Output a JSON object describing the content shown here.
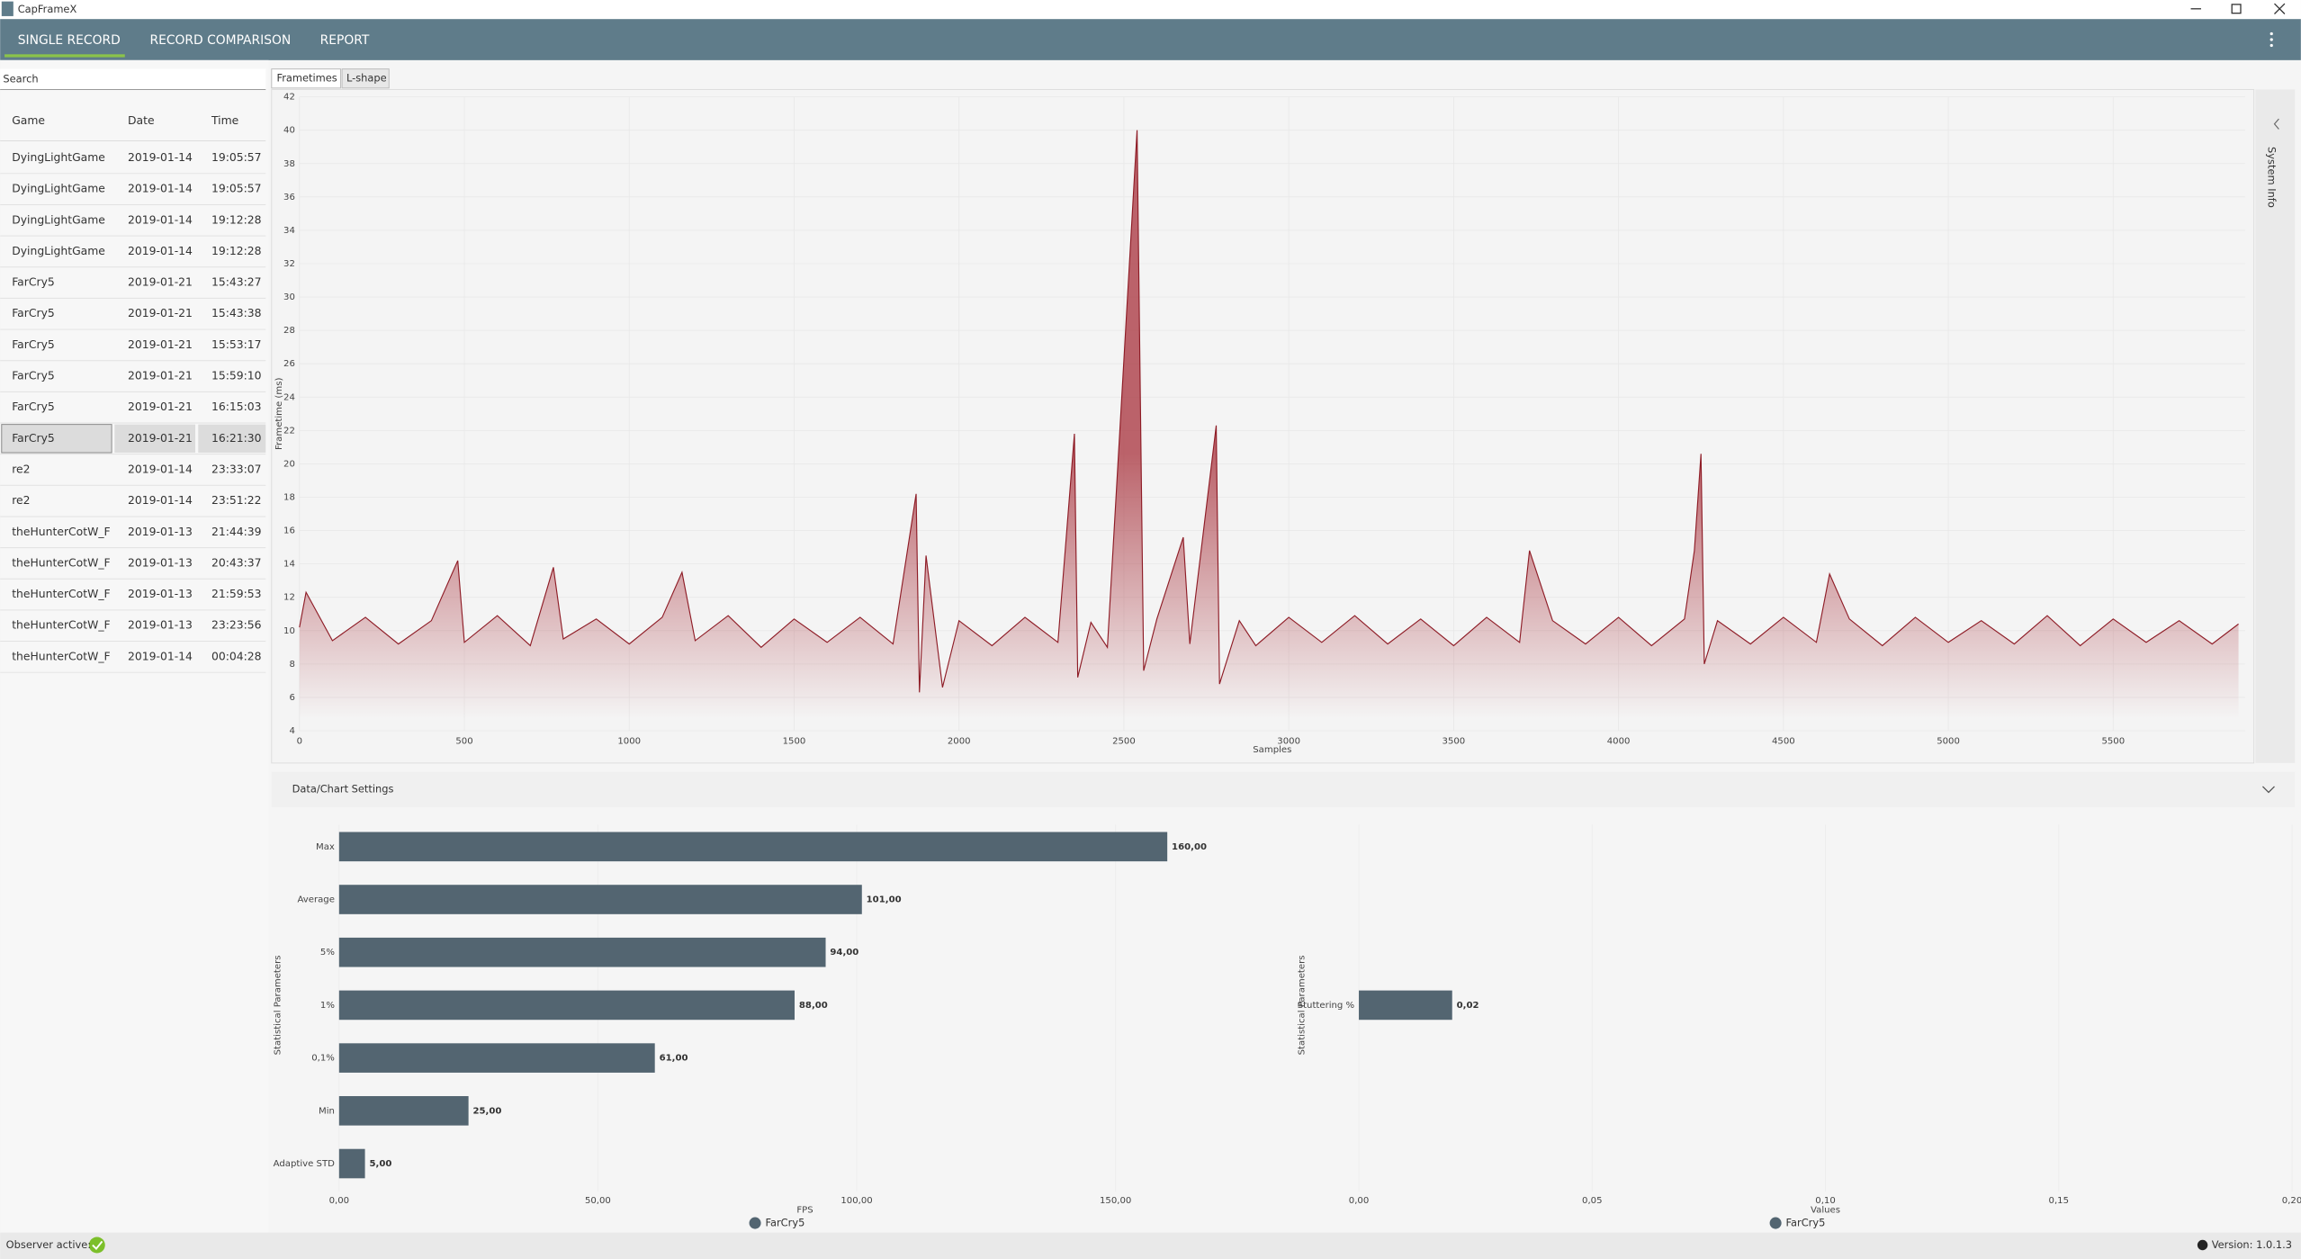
{
  "window": {
    "title": "CapFrameX"
  },
  "nav": {
    "tabs": [
      "SINGLE RECORD",
      "RECORD COMPARISON",
      "REPORT"
    ]
  },
  "sidebar": {
    "search_placeholder": "Search",
    "table": {
      "columns": [
        "Game",
        "Date",
        "Time"
      ],
      "rows": [
        [
          "DyingLightGame",
          "2019-01-14",
          "19:05:57"
        ],
        [
          "DyingLightGame",
          "2019-01-14",
          "19:05:57"
        ],
        [
          "DyingLightGame",
          "2019-01-14",
          "19:12:28"
        ],
        [
          "DyingLightGame",
          "2019-01-14",
          "19:12:28"
        ],
        [
          "FarCry5",
          "2019-01-21",
          "15:43:27"
        ],
        [
          "FarCry5",
          "2019-01-21",
          "15:43:38"
        ],
        [
          "FarCry5",
          "2019-01-21",
          "15:53:17"
        ],
        [
          "FarCry5",
          "2019-01-21",
          "15:59:10"
        ],
        [
          "FarCry5",
          "2019-01-21",
          "16:15:03"
        ],
        [
          "FarCry5",
          "2019-01-21",
          "16:21:30"
        ],
        [
          "re2",
          "2019-01-14",
          "23:33:07"
        ],
        [
          "re2",
          "2019-01-14",
          "23:51:22"
        ],
        [
          "theHunterCotW_F",
          "2019-01-13",
          "21:44:39"
        ],
        [
          "theHunterCotW_F",
          "2019-01-13",
          "20:43:37"
        ],
        [
          "theHunterCotW_F",
          "2019-01-13",
          "21:59:53"
        ],
        [
          "theHunterCotW_F",
          "2019-01-13",
          "23:23:56"
        ],
        [
          "theHunterCotW_F",
          "2019-01-14",
          "00:04:28"
        ]
      ]
    }
  },
  "chart_tabs": [
    "Frametimes",
    "L-shape"
  ],
  "side_panel": "System Info",
  "settings_header": "Data/Chart Settings",
  "status": {
    "observer": "Observer active:",
    "version": "Version: 1.0.1.3"
  },
  "chart_data": [
    {
      "type": "line",
      "xlabel": "Samples",
      "ylabel": "Frametime (ms)",
      "color": "#8e1c26",
      "grid": true,
      "xlim": [
        0,
        5900
      ],
      "ylim": [
        4,
        42
      ],
      "xticks": [
        0,
        500,
        1000,
        1500,
        2000,
        2500,
        3000,
        3500,
        4000,
        4500,
        5000,
        5500
      ],
      "yticks": [
        4,
        6,
        8,
        10,
        12,
        14,
        16,
        18,
        20,
        22,
        24,
        26,
        28,
        30,
        32,
        34,
        36,
        38,
        40,
        42
      ],
      "x": [
        0,
        20,
        100,
        200,
        300,
        400,
        480,
        500,
        600,
        700,
        770,
        800,
        900,
        1000,
        1100,
        1160,
        1200,
        1300,
        1400,
        1500,
        1600,
        1700,
        1800,
        1870,
        1880,
        1900,
        1950,
        2000,
        2100,
        2200,
        2300,
        2350,
        2360,
        2400,
        2450,
        2540,
        2560,
        2600,
        2680,
        2700,
        2780,
        2790,
        2850,
        2900,
        3000,
        3100,
        3200,
        3300,
        3400,
        3500,
        3600,
        3700,
        3730,
        3800,
        3900,
        4000,
        4100,
        4200,
        4230,
        4250,
        4260,
        4300,
        4400,
        4500,
        4600,
        4640,
        4700,
        4800,
        4900,
        5000,
        5100,
        5200,
        5300,
        5400,
        5500,
        5600,
        5700,
        5800,
        5880
      ],
      "values": [
        10.2,
        12.3,
        9.4,
        10.8,
        9.2,
        10.6,
        14.2,
        9.3,
        10.9,
        9.1,
        13.8,
        9.5,
        10.7,
        9.2,
        10.8,
        13.5,
        9.4,
        10.9,
        9.0,
        10.7,
        9.3,
        10.8,
        9.2,
        18.2,
        6.3,
        14.5,
        6.6,
        10.6,
        9.1,
        10.8,
        9.3,
        21.8,
        7.2,
        10.5,
        9.0,
        40,
        7.6,
        10.7,
        15.6,
        9.2,
        22.3,
        6.8,
        10.6,
        9.1,
        10.8,
        9.3,
        10.9,
        9.2,
        10.7,
        9.1,
        10.8,
        9.3,
        14.8,
        10.6,
        9.2,
        10.8,
        9.1,
        10.7,
        14.8,
        20.6,
        8.0,
        10.6,
        9.2,
        10.8,
        9.3,
        13.4,
        10.7,
        9.1,
        10.8,
        9.3,
        10.6,
        9.2,
        10.9,
        9.1,
        10.7,
        9.3,
        10.6,
        9.2,
        10.4
      ]
    },
    {
      "type": "hbar",
      "xlabel": "FPS",
      "ylabel": "Statistical Parameters",
      "grid": true,
      "categories": [
        "Max",
        "Average",
        "5%",
        "1%",
        "0,1%",
        "Min",
        "Adaptive STD"
      ],
      "series": [
        {
          "name": "FarCry5",
          "color": "#536571",
          "values": [
            160,
            101,
            94,
            88,
            61,
            25,
            5
          ],
          "value_labels": [
            "160,00",
            "101,00",
            "94,00",
            "88,00",
            "61,00",
            "25,00",
            "5,00"
          ]
        }
      ],
      "xlim": [
        0,
        180
      ],
      "xticks": [
        {
          "value": 0,
          "label": "0,00"
        },
        {
          "value": 50,
          "label": "50,00"
        },
        {
          "value": 100,
          "label": "100,00"
        },
        {
          "value": 150,
          "label": "150,00"
        }
      ]
    },
    {
      "type": "hbar",
      "xlabel": "Values",
      "ylabel": "Statistical Parameters",
      "grid": true,
      "categories": [
        "Stuttering %"
      ],
      "series": [
        {
          "name": "FarCry5",
          "color": "#536571",
          "values": [
            0.02
          ],
          "value_labels": [
            "0,02"
          ]
        }
      ],
      "xlim": [
        0,
        0.2
      ],
      "xticks": [
        {
          "value": 0,
          "label": "0,00"
        },
        {
          "value": 0.05,
          "label": "0,05"
        },
        {
          "value": 0.1,
          "label": "0,10"
        },
        {
          "value": 0.15,
          "label": "0,15"
        },
        {
          "value": 0.2,
          "label": "0,20"
        }
      ]
    }
  ]
}
